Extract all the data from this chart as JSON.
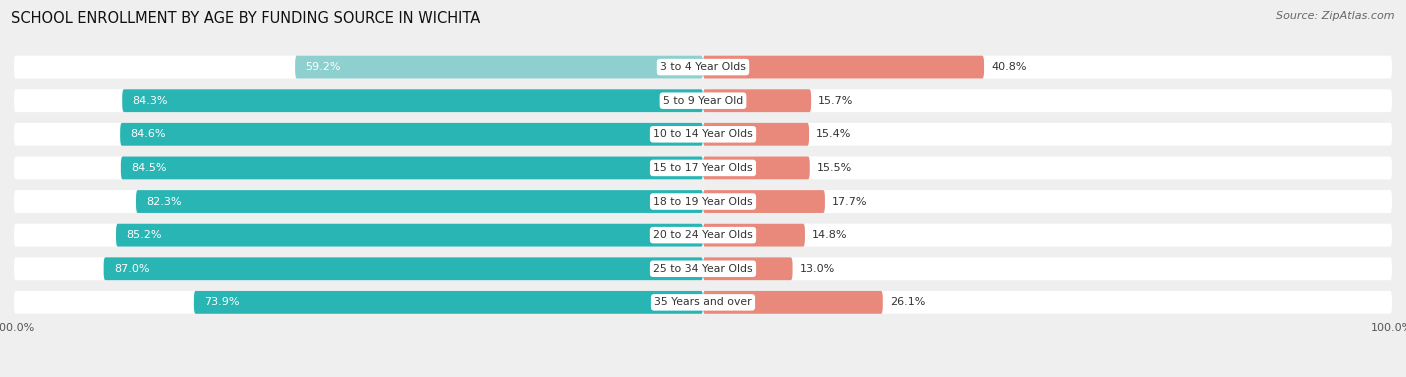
{
  "title": "SCHOOL ENROLLMENT BY AGE BY FUNDING SOURCE IN WICHITA",
  "source": "Source: ZipAtlas.com",
  "categories": [
    "3 to 4 Year Olds",
    "5 to 9 Year Old",
    "10 to 14 Year Olds",
    "15 to 17 Year Olds",
    "18 to 19 Year Olds",
    "20 to 24 Year Olds",
    "25 to 34 Year Olds",
    "35 Years and over"
  ],
  "public_values": [
    59.2,
    84.3,
    84.6,
    84.5,
    82.3,
    85.2,
    87.0,
    73.9
  ],
  "private_values": [
    40.8,
    15.7,
    15.4,
    15.5,
    17.7,
    14.8,
    13.0,
    26.1
  ],
  "public_color_light": "#8ecfcf",
  "public_color_dark": "#2ab5b5",
  "private_color": "#e8897c",
  "background_color": "#efefef",
  "bar_height": 0.68,
  "xlim_left": -100,
  "xlim_right": 100,
  "title_fontsize": 10.5,
  "source_fontsize": 8,
  "label_fontsize": 8,
  "category_fontsize": 7.8,
  "axis_label_fontsize": 8
}
